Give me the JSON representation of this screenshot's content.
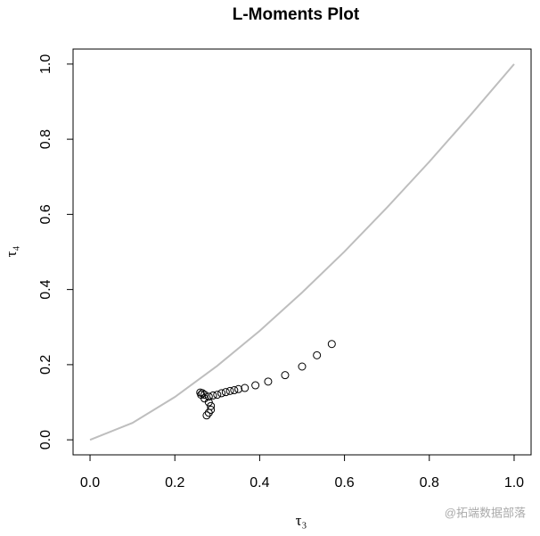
{
  "chart_data": {
    "type": "scatter",
    "title": "L-Moments Plot",
    "x_label": "τ₃",
    "y_label": "τ₄",
    "xlim": [
      -0.04,
      1.04
    ],
    "ylim": [
      -0.04,
      1.04
    ],
    "xticks": [
      {
        "value": 0,
        "label": "0.0"
      },
      {
        "value": 0.2,
        "label": "0.2"
      },
      {
        "value": 0.4,
        "label": "0.4"
      },
      {
        "value": 0.6,
        "label": "0.6"
      },
      {
        "value": 0.8,
        "label": "0.8"
      },
      {
        "value": 1,
        "label": "1.0"
      }
    ],
    "yticks": [
      {
        "value": 0,
        "label": "0.0"
      },
      {
        "value": 0.2,
        "label": "0.2"
      },
      {
        "value": 0.4,
        "label": "0.4"
      },
      {
        "value": 0.6,
        "label": "0.6"
      },
      {
        "value": 0.8,
        "label": "0.8"
      },
      {
        "value": 1,
        "label": "1.0"
      }
    ],
    "series": [
      {
        "type": "line",
        "color": "#bebebe",
        "x": [
          0,
          0.1,
          0.2,
          0.3,
          0.4,
          0.5,
          0.6,
          0.7,
          0.8,
          0.9,
          1
        ],
        "values": [
          0,
          0.045,
          0.114,
          0.197,
          0.29,
          0.392,
          0.501,
          0.618,
          0.74,
          0.868,
          1
        ]
      },
      {
        "type": "scatter",
        "color": "#000000",
        "x": [
          0.57,
          0.535,
          0.5,
          0.46,
          0.42,
          0.39,
          0.365,
          0.35,
          0.34,
          0.33,
          0.32,
          0.31,
          0.3,
          0.29,
          0.28,
          0.27,
          0.265,
          0.26,
          0.262,
          0.27,
          0.28,
          0.285,
          0.285,
          0.28,
          0.275
        ],
        "values": [
          0.255,
          0.225,
          0.195,
          0.172,
          0.155,
          0.145,
          0.138,
          0.135,
          0.132,
          0.13,
          0.127,
          0.124,
          0.12,
          0.118,
          0.115,
          0.12,
          0.124,
          0.126,
          0.12,
          0.11,
          0.1,
          0.09,
          0.08,
          0.072,
          0.065
        ]
      }
    ],
    "watermark": "@拓端数据部落"
  }
}
